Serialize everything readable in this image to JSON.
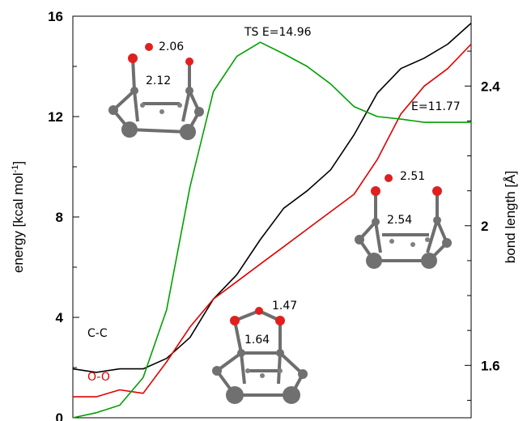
{
  "colors": {
    "cc": "#000000",
    "oo": "#e00000",
    "energy": "#00a000",
    "atom_c": "#6e6e6e",
    "atom_o": "#e02020"
  },
  "chart_data": {
    "type": "line",
    "title": "",
    "y_left": {
      "label": "energy [kcal mol",
      "label_sup": "-1",
      "label_end": "]",
      "lim": [
        0,
        16
      ],
      "ticks": [
        "0",
        "4",
        "8",
        "12",
        "16"
      ]
    },
    "y_right": {
      "label": "bond length [Å]",
      "lim": [
        1.45,
        2.6
      ],
      "ticks": [
        "1.6",
        "2",
        "2.4"
      ]
    },
    "x": [
      0,
      1,
      2,
      3,
      4,
      5,
      6,
      7,
      8,
      9,
      10,
      11,
      12,
      13,
      14,
      15,
      16,
      17
    ],
    "series": [
      {
        "name": "C-C",
        "axis": "right",
        "values": [
          1.59,
          1.58,
          1.59,
          1.59,
          1.62,
          1.68,
          1.79,
          1.86,
          1.96,
          2.05,
          2.1,
          2.16,
          2.26,
          2.38,
          2.45,
          2.48,
          2.52,
          2.58
        ]
      },
      {
        "name": "O-O",
        "axis": "right",
        "values": [
          1.51,
          1.51,
          1.53,
          1.52,
          1.61,
          1.71,
          1.79,
          1.84,
          1.89,
          1.94,
          1.99,
          2.04,
          2.09,
          2.19,
          2.32,
          2.4,
          2.45,
          2.52
        ]
      },
      {
        "name": "energy",
        "axis": "left",
        "values": [
          0.0,
          0.2,
          0.5,
          1.6,
          4.3,
          9.2,
          13.0,
          14.4,
          14.96,
          14.5,
          14.0,
          13.3,
          12.4,
          12.0,
          11.9,
          11.77,
          11.77,
          11.77
        ]
      }
    ],
    "annotations": {
      "ts": "TS E=14.96",
      "final": "E=11.77",
      "cc_label": "C-C",
      "oo_label": "O-O",
      "struct_reactant": {
        "oo": "1.47",
        "cc": "1.64"
      },
      "struct_ts": {
        "oo": "2.06",
        "cc": "2.12"
      },
      "struct_product": {
        "oo": "2.51",
        "cc": "2.54"
      }
    }
  }
}
